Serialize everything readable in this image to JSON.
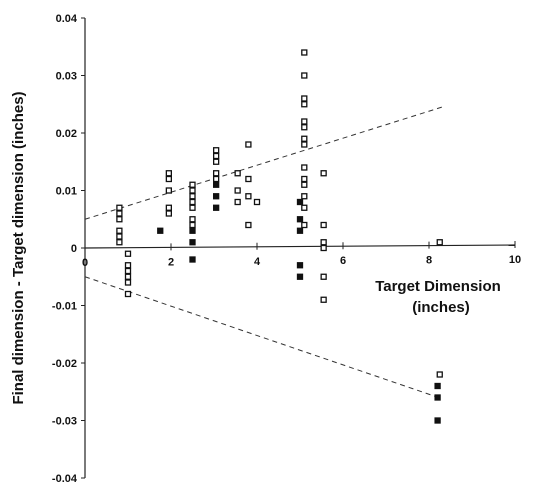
{
  "chart_data": {
    "type": "scatter",
    "title": "",
    "xlabel": "Target Dimension",
    "xlabel_unit": "(inches)",
    "ylabel": "Final dimension - Target dimension (inches)",
    "xlim": [
      0,
      10
    ],
    "ylim": [
      -0.04,
      0.04
    ],
    "x_ticks": [
      0,
      2,
      4,
      6,
      8,
      10
    ],
    "x_tick_labels": [
      "0",
      "2",
      "4",
      "6",
      "8",
      "10"
    ],
    "y_ticks": [
      0.04,
      0.03,
      0.02,
      0.01,
      0,
      -0.01,
      -0.02,
      -0.03,
      -0.04
    ],
    "y_tick_labels": [
      "0.04",
      "0.03",
      "0.02",
      "0.01",
      "0",
      "-0.01",
      "-0.02",
      "-0.03",
      "-0.04"
    ],
    "grid": false,
    "legend": "none",
    "series": [
      {
        "marker": "open-square",
        "points": [
          [
            0.8,
            0.007
          ],
          [
            0.8,
            0.006
          ],
          [
            0.8,
            0.005
          ],
          [
            0.8,
            0.003
          ],
          [
            0.8,
            0.002
          ],
          [
            0.8,
            0.001
          ],
          [
            1.0,
            -0.001
          ],
          [
            1.0,
            -0.003
          ],
          [
            1.0,
            -0.004
          ],
          [
            1.0,
            -0.005
          ],
          [
            1.0,
            -0.006
          ],
          [
            1.0,
            -0.008
          ],
          [
            1.95,
            0.013
          ],
          [
            1.95,
            0.012
          ],
          [
            1.95,
            0.01
          ],
          [
            1.95,
            0.007
          ],
          [
            1.95,
            0.006
          ],
          [
            2.5,
            0.011
          ],
          [
            2.5,
            0.01
          ],
          [
            2.5,
            0.009
          ],
          [
            2.5,
            0.008
          ],
          [
            2.5,
            0.007
          ],
          [
            2.5,
            0.005
          ],
          [
            2.5,
            0.004
          ],
          [
            3.05,
            0.017
          ],
          [
            3.05,
            0.016
          ],
          [
            3.05,
            0.015
          ],
          [
            3.05,
            0.013
          ],
          [
            3.05,
            0.012
          ],
          [
            3.55,
            0.013
          ],
          [
            3.55,
            0.01
          ],
          [
            3.55,
            0.008
          ],
          [
            3.8,
            0.018
          ],
          [
            3.8,
            0.012
          ],
          [
            3.8,
            0.009
          ],
          [
            3.8,
            0.004
          ],
          [
            4.0,
            0.008
          ],
          [
            5.1,
            0.034
          ],
          [
            5.1,
            0.03
          ],
          [
            5.1,
            0.026
          ],
          [
            5.1,
            0.025
          ],
          [
            5.1,
            0.022
          ],
          [
            5.1,
            0.021
          ],
          [
            5.1,
            0.019
          ],
          [
            5.1,
            0.018
          ],
          [
            5.1,
            0.014
          ],
          [
            5.1,
            0.012
          ],
          [
            5.1,
            0.011
          ],
          [
            5.1,
            0.009
          ],
          [
            5.1,
            0.007
          ],
          [
            5.1,
            0.004
          ],
          [
            5.55,
            0.013
          ],
          [
            5.55,
            0.004
          ],
          [
            5.55,
            0.001
          ],
          [
            5.55,
            0.0
          ],
          [
            5.55,
            -0.005
          ],
          [
            5.55,
            -0.009
          ],
          [
            8.25,
            0.001
          ],
          [
            8.25,
            -0.022
          ]
        ]
      },
      {
        "marker": "filled-square",
        "points": [
          [
            1.75,
            0.003
          ],
          [
            2.5,
            0.003
          ],
          [
            2.5,
            0.001
          ],
          [
            2.5,
            -0.002
          ],
          [
            3.05,
            0.011
          ],
          [
            3.05,
            0.009
          ],
          [
            3.05,
            0.007
          ],
          [
            5.0,
            0.008
          ],
          [
            5.0,
            0.005
          ],
          [
            5.0,
            0.003
          ],
          [
            5.0,
            -0.003
          ],
          [
            5.0,
            -0.005
          ],
          [
            8.2,
            -0.024
          ],
          [
            8.2,
            -0.026
          ],
          [
            8.2,
            -0.03
          ]
        ]
      }
    ],
    "reference_lines": [
      {
        "style": "dashed",
        "from": [
          0,
          0.005
        ],
        "to": [
          8.3,
          0.0245
        ]
      },
      {
        "style": "dashed",
        "from": [
          0,
          -0.005
        ],
        "to": [
          8.3,
          -0.0262
        ]
      }
    ]
  }
}
